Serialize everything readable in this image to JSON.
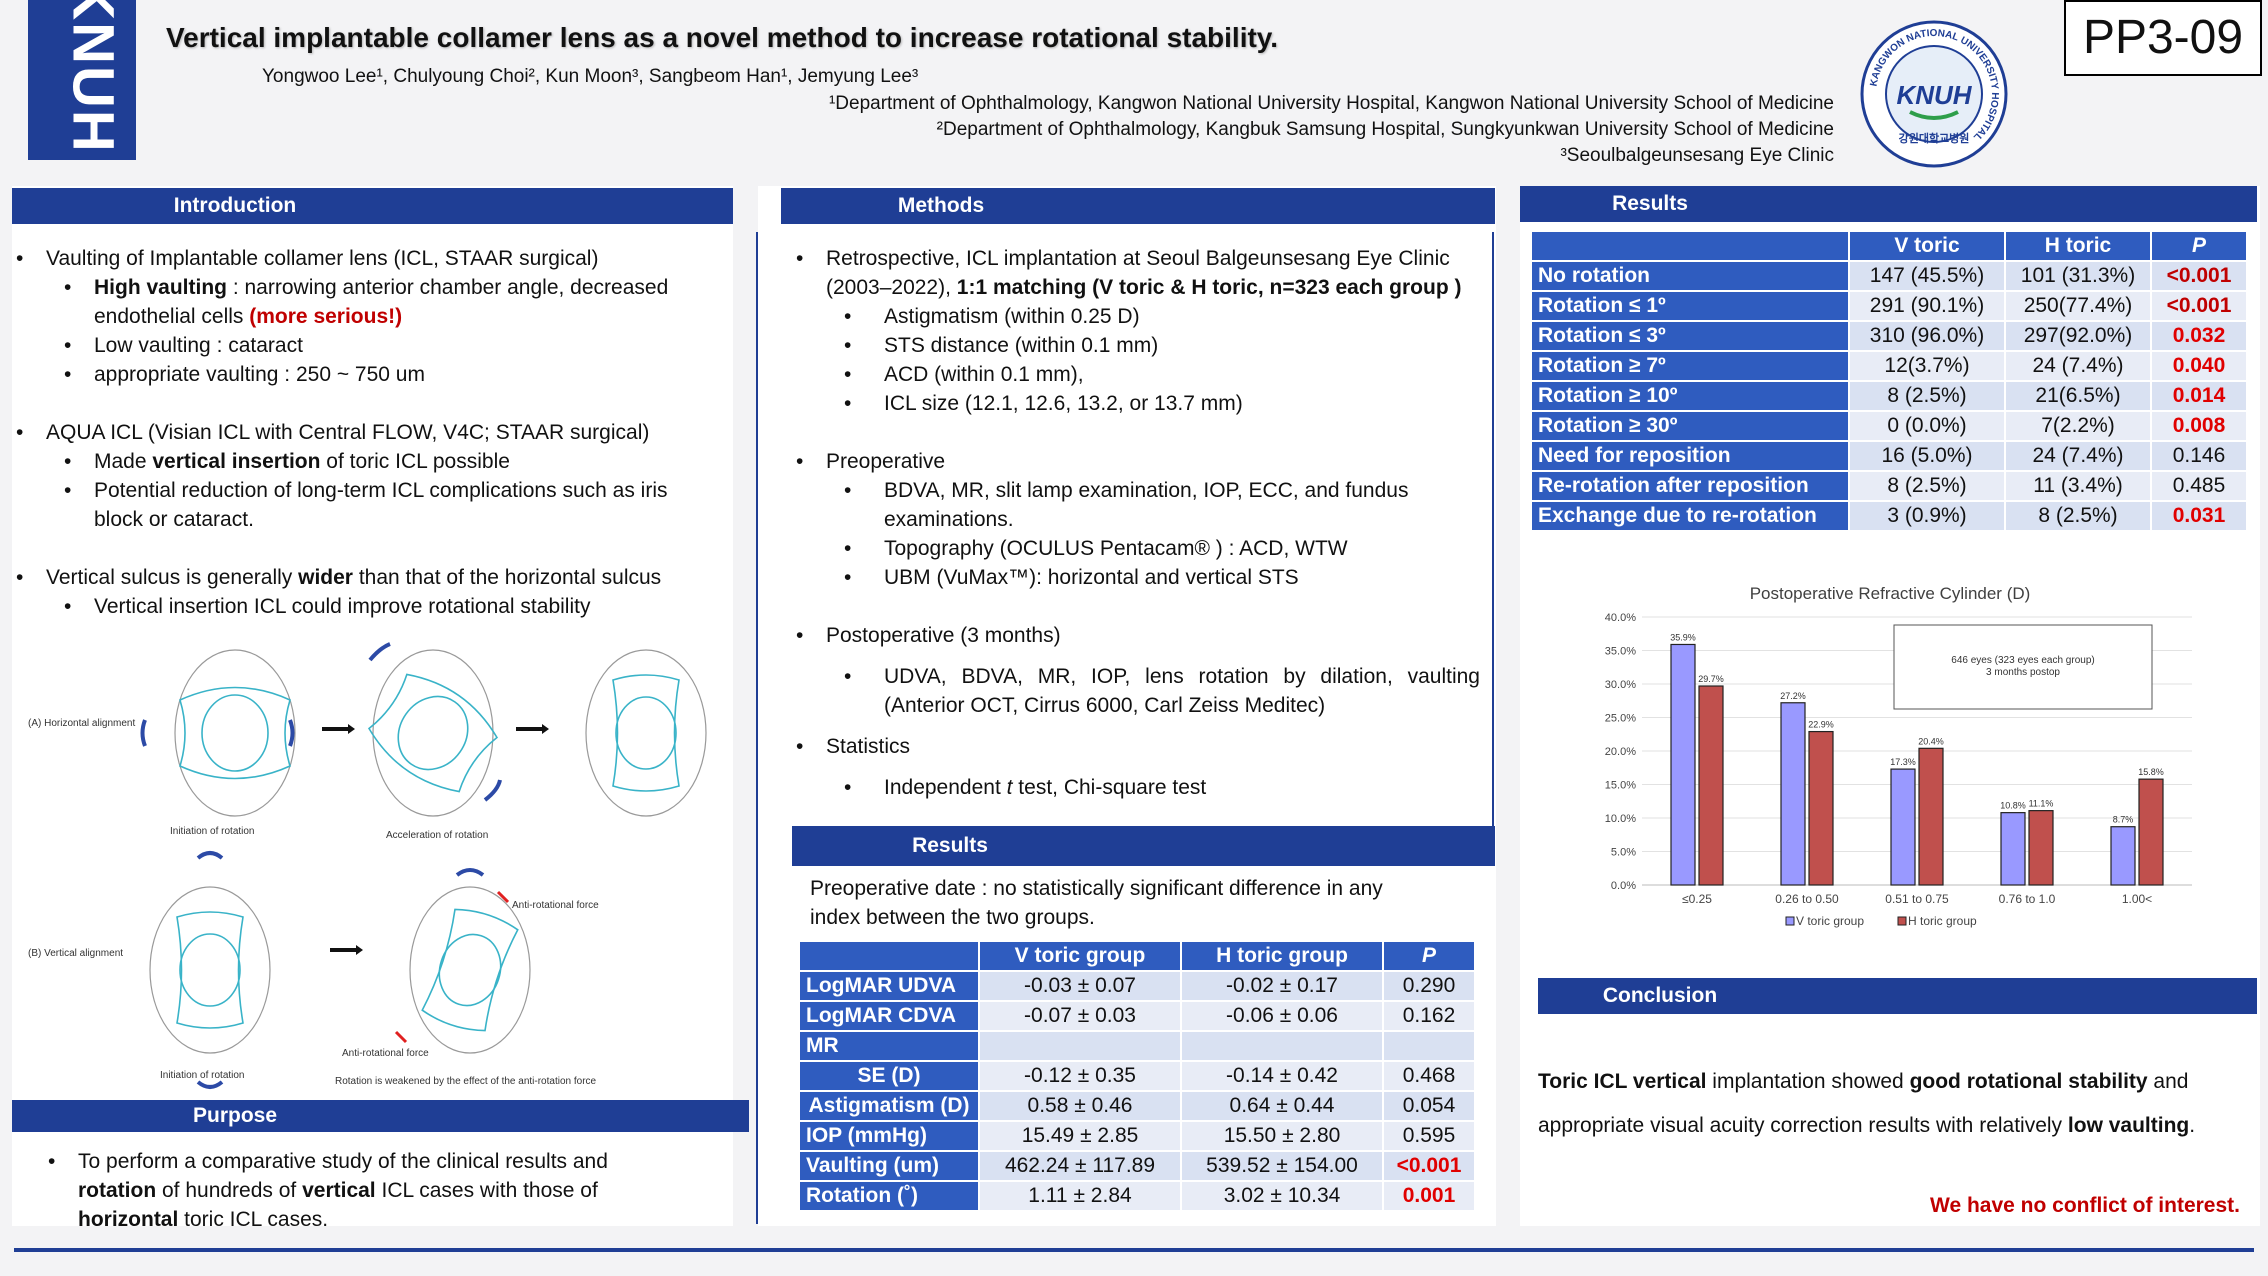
{
  "header": {
    "logo_vertical_text": "KNUH",
    "title": "Vertical implantable collamer lens as a novel method to increase rotational stability.",
    "authors": "Yongwoo Lee¹, Chulyoung Choi², Kun Moon³, Sangbeom Han¹, Jemyung Lee³",
    "affiliations": [
      "¹Department of Ophthalmology, Kangwon National University Hospital, Kangwon National University School of Medicine",
      "²Department of Ophthalmology, Kangbuk Samsung Hospital, Sungkyunkwan University School of Medicine",
      "³Seoulbalgeunsesang Eye Clinic"
    ],
    "seal_ring_text": "KANGWON NATIONAL UNIVERSITY HOSPITAL",
    "seal_center_text": "KNUH",
    "seal_korean": "강원대학교병원",
    "poster_id": "PP3-09"
  },
  "introduction": {
    "heading": "Introduction",
    "b1": "Vaulting of Implantable collamer lens (ICL, STAAR surgical)",
    "b1_s1_bold": "High vaulting",
    "b1_s1_text": " : narrowing anterior chamber angle, decreased endothelial cells ",
    "b1_s1_red": "(more serious!)",
    "b1_s2": "Low vaulting : cataract",
    "b1_s3": "appropriate vaulting : 250 ~ 750 um",
    "b2": "AQUA ICL (Visian ICL with Central FLOW, V4C; STAAR surgical)",
    "b2_s1_pre": "Made ",
    "b2_s1_bold": "vertical insertion",
    "b2_s1_post": " of toric ICL possible",
    "b2_s2": "Potential reduction of long-term ICL complications such as iris block or cataract.",
    "b3_pre": "Vertical sulcus is generally ",
    "b3_bold": "wider",
    "b3_post": " than that of the horizontal sulcus",
    "b3_s1": "Vertical insertion ICL could improve rotational stability",
    "figure": {
      "a_label": "(A) Horizontal alignment",
      "b_label": "(B) Vertical alignment",
      "initiation": "Initiation of rotation",
      "acceleration": "Acceleration of rotation",
      "anti_force": "Anti-rotational force",
      "initiation2": "Initiation of rotation",
      "anti_force2": "Anti-rotational force",
      "weakened": "Rotation is weakened by the effect of the anti-rotation force"
    }
  },
  "purpose": {
    "heading": "Purpose",
    "t1": "To perform a comparative study of the clinical results and ",
    "t2_bold": "rotation",
    "t3": " of hundreds of ",
    "t4_bold": "vertical",
    "t5": " ICL cases with those of ",
    "t6_bold": "horizontal",
    "t7": " toric ICL cases."
  },
  "methods": {
    "heading": "Methods",
    "b1_text": "Retrospective, ICL implantation at Seoul Balgeunsesang Eye Clinic (2003–2022), ",
    "b1_bold": "1:1 matching (V toric & H toric, n=323 each group )",
    "b1_subs": [
      "Astigmatism (within 0.25 D)",
      "STS distance (within 0.1 mm)",
      "ACD (within 0.1 mm),",
      "ICL size (12.1, 12.6, 13.2, or 13.7 mm)"
    ],
    "b2": "Preoperative",
    "b2_subs": [
      "BDVA, MR, slit lamp examination, IOP, ECC, and fundus examinations.",
      "Topography (OCULUS Pentacam® ) : ACD, WTW",
      "UBM (VuMax™): horizontal and vertical STS"
    ],
    "b3": "Postoperative (3 months)",
    "b3_sub": "UDVA, BDVA, MR, IOP, lens rotation by dilation, vaulting (Anterior OCT, Cirrus 6000, Carl Zeiss Meditec)",
    "b4": "Statistics",
    "b4_sub_pre": "Independent ",
    "b4_sub_italic": "t",
    "b4_sub_post": " test, Chi-square test"
  },
  "results_pre": {
    "heading": "Results",
    "intro": "Preoperative date : no statistically significant difference in any index between the two groups.",
    "headers": [
      "V toric group",
      "H toric group",
      "P"
    ],
    "rows": [
      {
        "label": "LogMAR UDVA",
        "v": "-0.03 ± 0.07",
        "h": "-0.02 ± 0.17",
        "p": "0.290",
        "sig": false
      },
      {
        "label": "LogMAR CDVA",
        "v": "-0.07 ± 0.03",
        "h": "-0.06 ± 0.06",
        "p": "0.162",
        "sig": false
      },
      {
        "label": "MR",
        "v": "",
        "h": "",
        "p": "",
        "sig": false
      },
      {
        "label": "SE (D)",
        "v": "-0.12 ± 0.35",
        "h": "-0.14 ± 0.42",
        "p": "0.468",
        "sig": false,
        "indent": true
      },
      {
        "label": "Astigmatism (D)",
        "v": "0.58 ± 0.46",
        "h": "0.64 ± 0.44",
        "p": "0.054",
        "sig": false,
        "indent": true
      },
      {
        "label": "IOP (mmHg)",
        "v": "15.49 ± 2.85",
        "h": "15.50 ± 2.80",
        "p": "0.595",
        "sig": false
      },
      {
        "label": "Vaulting (um)",
        "v": "462.24 ± 117.89",
        "h": "539.52 ± 154.00",
        "p": "<0.001",
        "sig": true
      },
      {
        "label": "Rotation (˚)",
        "v": "1.11 ± 2.84",
        "h": "3.02 ± 10.34",
        "p": "0.001",
        "sig": true
      }
    ]
  },
  "results_post": {
    "heading": "Results",
    "headers": [
      "V toric",
      "H toric",
      "P"
    ],
    "rows": [
      {
        "label": "No rotation",
        "v": "147 (45.5%)",
        "h": "101 (31.3%)",
        "p": "<0.001",
        "sig": true
      },
      {
        "label": "Rotation ≤ 1º",
        "v": "291 (90.1%)",
        "h": "250(77.4%)",
        "p": "<0.001",
        "sig": true
      },
      {
        "label": "Rotation ≤ 3º",
        "v": "310 (96.0%)",
        "h": "297(92.0%)",
        "p": "0.032",
        "sig": true
      },
      {
        "label": "Rotation ≥ 7º",
        "v": "12(3.7%)",
        "h": "24 (7.4%)",
        "p": "0.040",
        "sig": true
      },
      {
        "label": "Rotation ≥ 10º",
        "v": "8 (2.5%)",
        "h": "21(6.5%)",
        "p": "0.014",
        "sig": true
      },
      {
        "label": "Rotation ≥ 30º",
        "v": "0 (0.0%)",
        "h": "7(2.2%)",
        "p": "0.008",
        "sig": true
      },
      {
        "label": "Need for reposition",
        "v": "16 (5.0%)",
        "h": "24 (7.4%)",
        "p": "0.146",
        "sig": false
      },
      {
        "label": "Re-rotation after reposition",
        "v": "8 (2.5%)",
        "h": "11 (3.4%)",
        "p": "0.485",
        "sig": false
      },
      {
        "label": "Exchange due to re-rotation",
        "v": "3 (0.9%)",
        "h": "8 (2.5%)",
        "p": "0.031",
        "sig": true
      }
    ]
  },
  "chart_data": {
    "type": "bar",
    "title": "Postoperative Refractive Cylinder (D)",
    "categories": [
      "≤0.25",
      "0.26 to 0.50",
      "0.51 to 0.75",
      "0.76 to 1.0",
      "1.00<"
    ],
    "series": [
      {
        "name": "V toric group",
        "values": [
          35.9,
          27.2,
          17.3,
          10.8,
          8.7
        ],
        "labels": [
          "35.9%",
          "27.2%",
          "17.3%",
          "10.8%",
          "8.7%"
        ],
        "color": "#9999ff"
      },
      {
        "name": "H toric group",
        "values": [
          29.7,
          22.9,
          20.4,
          11.1,
          15.8
        ],
        "labels": [
          "29.7%",
          "22.9%",
          "20.4%",
          "11.1%",
          "15.8%"
        ],
        "color": "#c0504d"
      }
    ],
    "yticks": [
      "0.0%",
      "5.0%",
      "10.0%",
      "15.0%",
      "20.0%",
      "25.0%",
      "30.0%",
      "35.0%",
      "40.0%"
    ],
    "ylim": [
      0,
      40
    ],
    "annotation": "646 eyes (323 eyes each group)\n3 months postop",
    "legend_position": "bottom",
    "grid": true
  },
  "conclusion": {
    "heading": "Conclusion",
    "b1": "Toric ICL vertical",
    "t1": " implantation showed ",
    "b2": "good rotational stability",
    "t2": " and",
    "t3": "appropriate visual acuity correction results with relatively ",
    "b3": "low vaulting",
    "t4": ".",
    "coi": "We have no conflict of interest."
  },
  "colors": {
    "header_blue": "#1f3e95",
    "table_blue": "#2f5cbf",
    "table_cell": "#d9e1f2",
    "sig_red": "#e00000"
  }
}
